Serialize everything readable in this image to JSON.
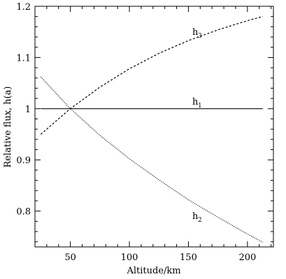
{
  "chart_data": {
    "type": "line",
    "xlabel": "Altitude/km",
    "ylabel": "Relative flux, h(a)",
    "xlim": [
      20,
      222
    ],
    "ylim": [
      0.73,
      1.2
    ],
    "xticks": [
      50,
      100,
      150,
      200
    ],
    "yticks": [
      0.8,
      0.9,
      1.0,
      1.1,
      1.2
    ],
    "ytick_labels": [
      "0.8",
      "0.9",
      "1",
      "1.1",
      "1.2"
    ],
    "grid": false,
    "series": [
      {
        "name": "h1",
        "label_main": "h",
        "label_sub": "1",
        "style": "solid",
        "x": [
          25,
          213
        ],
        "y": [
          1.0,
          1.0
        ]
      },
      {
        "name": "h2",
        "label_main": "h",
        "label_sub": "2",
        "style": "dotted",
        "x": [
          25,
          50,
          75,
          100,
          125,
          150,
          175,
          200,
          213
        ],
        "y": [
          1.062,
          1.0,
          0.948,
          0.902,
          0.861,
          0.822,
          0.788,
          0.755,
          0.739
        ]
      },
      {
        "name": "h3",
        "label_main": "h",
        "label_sub": "3",
        "style": "dashed",
        "x": [
          25,
          50,
          75,
          100,
          125,
          150,
          175,
          200,
          213
        ],
        "y": [
          0.95,
          1.0,
          1.042,
          1.078,
          1.108,
          1.133,
          1.154,
          1.172,
          1.18
        ]
      }
    ]
  }
}
